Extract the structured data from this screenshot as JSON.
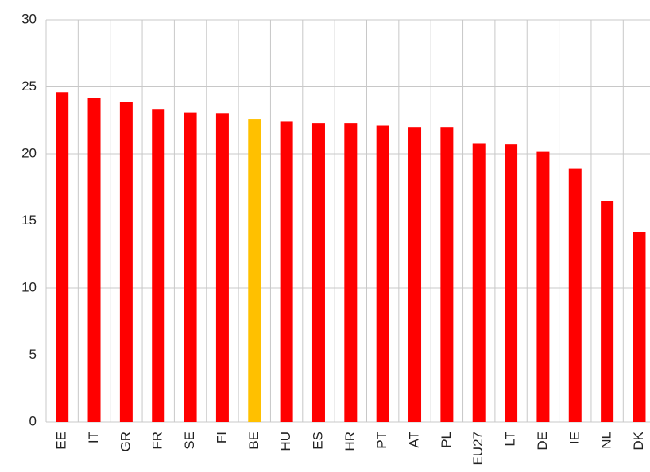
{
  "chart_data": {
    "type": "bar",
    "categories": [
      "EE",
      "IT",
      "GR",
      "FR",
      "SE",
      "FI",
      "BE",
      "HU",
      "ES",
      "HR",
      "PT",
      "AT",
      "PL",
      "EU27",
      "LT",
      "DE",
      "IE",
      "NL",
      "DK"
    ],
    "values": [
      24.6,
      24.2,
      23.9,
      23.3,
      23.1,
      23.0,
      22.6,
      22.4,
      22.3,
      22.3,
      22.1,
      22.0,
      22.0,
      20.8,
      20.7,
      20.2,
      18.9,
      16.5,
      14.2
    ],
    "colors": [
      "#ff0000",
      "#ff0000",
      "#ff0000",
      "#ff0000",
      "#ff0000",
      "#ff0000",
      "#ffc000",
      "#ff0000",
      "#ff0000",
      "#ff0000",
      "#ff0000",
      "#ff0000",
      "#ff0000",
      "#ff0000",
      "#ff0000",
      "#ff0000",
      "#ff0000",
      "#ff0000",
      "#ff0000"
    ],
    "ylim": [
      0,
      30
    ],
    "yticks": [
      0,
      5,
      10,
      15,
      20,
      25,
      30
    ],
    "grid": true
  }
}
